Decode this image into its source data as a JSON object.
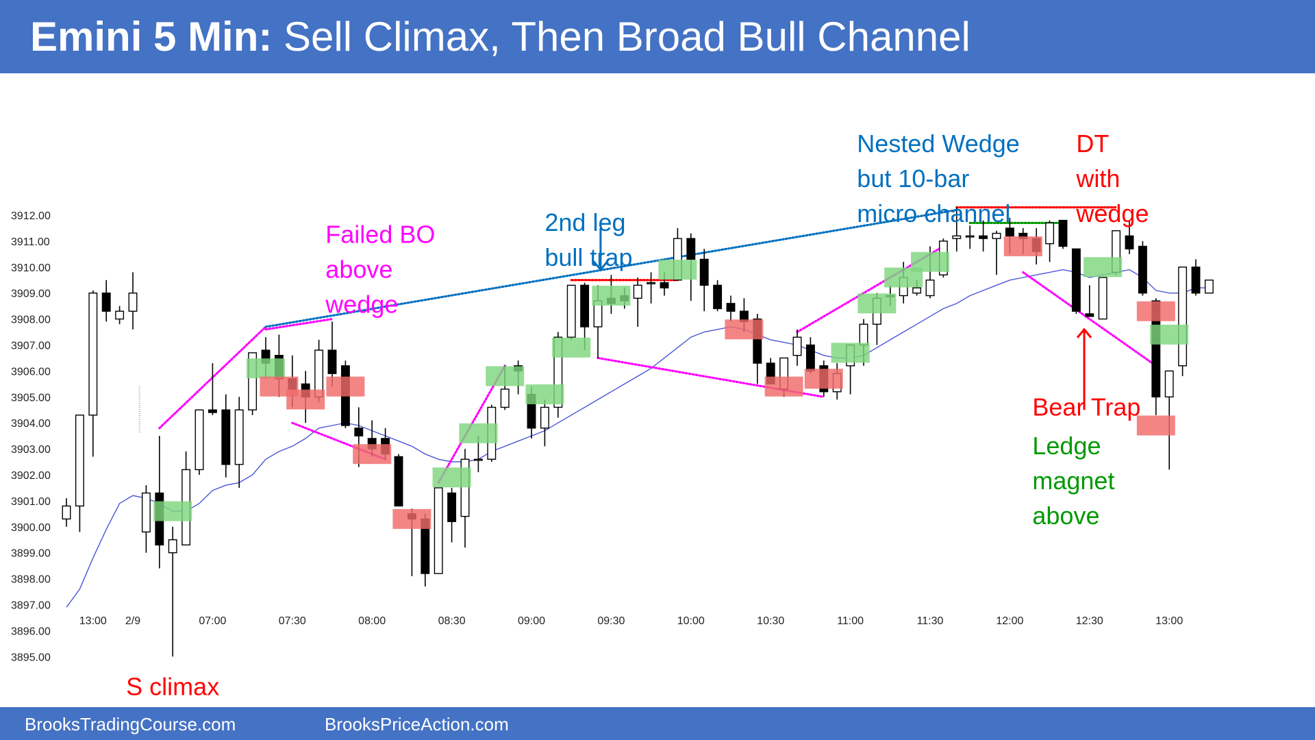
{
  "header": {
    "title_bold": "Emini 5 Min:",
    "title_rest": " Sell Climax, Then Broad Bull Channel"
  },
  "footer": {
    "left": "BrooksTradingCourse.com",
    "right": "BrooksPriceAction.com"
  },
  "colors": {
    "header_bg": "#4472c4",
    "bull_body": "#ffffff",
    "bear_body": "#000000",
    "ema": "#4a55d6",
    "green_box": "#7fd67f",
    "red_box": "#f06a6a",
    "magenta": "#ff00ff",
    "blue_text": "#0070c0",
    "red_text": "#ff0000",
    "green_text": "#009900"
  },
  "chart_data": {
    "type": "candlestick",
    "ylim": [
      3894.5,
      3913.0
    ],
    "y_ticks": [
      "3912.00",
      "3911.00",
      "3910.00",
      "3909.00",
      "3908.00",
      "3907.00",
      "3906.00",
      "3905.00",
      "3904.00",
      "3903.00",
      "3902.00",
      "3901.00",
      "3900.00",
      "3899.00",
      "3898.00",
      "3897.00",
      "3896.00",
      "3895.00"
    ],
    "x_ticks": [
      {
        "i": 2,
        "label": "13:00"
      },
      {
        "i": 5,
        "label": "2/9"
      },
      {
        "i": 11,
        "label": "07:00"
      },
      {
        "i": 17,
        "label": "07:30"
      },
      {
        "i": 23,
        "label": "08:00"
      },
      {
        "i": 29,
        "label": "08:30"
      },
      {
        "i": 35,
        "label": "09:00"
      },
      {
        "i": 41,
        "label": "09:30"
      },
      {
        "i": 47,
        "label": "10:00"
      },
      {
        "i": 53,
        "label": "10:30"
      },
      {
        "i": 59,
        "label": "11:00"
      },
      {
        "i": 65,
        "label": "11:30"
      },
      {
        "i": 71,
        "label": "12:00"
      },
      {
        "i": 77,
        "label": "12:30"
      },
      {
        "i": 83,
        "label": "13:00"
      }
    ],
    "candles": [
      [
        0,
        3900.3,
        3901.1,
        3900.0,
        3900.8
      ],
      [
        1,
        3900.8,
        3904.3,
        3899.8,
        3904.3
      ],
      [
        2,
        3904.3,
        3909.1,
        3902.7,
        3909.0
      ],
      [
        3,
        3909.0,
        3909.5,
        3907.9,
        3908.3
      ],
      [
        4,
        3908.0,
        3908.5,
        3907.8,
        3908.3
      ],
      [
        5,
        3908.3,
        3909.8,
        3907.6,
        3909.0
      ],
      [
        6,
        3899.8,
        3901.6,
        3899.0,
        3901.3
      ],
      [
        7,
        3901.3,
        3903.5,
        3898.4,
        3899.3
      ],
      [
        8,
        3899.0,
        3900.0,
        3895.0,
        3899.5
      ],
      [
        9,
        3899.3,
        3902.9,
        3899.3,
        3902.2
      ],
      [
        10,
        3902.2,
        3904.5,
        3902.0,
        3904.5
      ],
      [
        11,
        3904.5,
        3906.3,
        3904.3,
        3904.4
      ],
      [
        12,
        3904.5,
        3905.1,
        3901.9,
        3902.4
      ],
      [
        13,
        3902.4,
        3905.0,
        3901.5,
        3904.5
      ],
      [
        14,
        3904.5,
        3906.7,
        3904.3,
        3906.7
      ],
      [
        15,
        3906.8,
        3907.3,
        3905.7,
        3906.3
      ],
      [
        16,
        3906.6,
        3907.4,
        3905.0,
        3905.7
      ],
      [
        17,
        3905.7,
        3906.6,
        3904.6,
        3905.3
      ],
      [
        18,
        3905.5,
        3906.0,
        3904.0,
        3905.0
      ],
      [
        19,
        3905.0,
        3907.2,
        3904.8,
        3906.8
      ],
      [
        20,
        3906.8,
        3907.9,
        3905.4,
        3905.9
      ],
      [
        21,
        3906.2,
        3906.4,
        3903.8,
        3903.9
      ],
      [
        22,
        3903.8,
        3904.6,
        3902.3,
        3903.5
      ],
      [
        23,
        3903.4,
        3904.1,
        3902.7,
        3903.0
      ],
      [
        24,
        3903.4,
        3903.8,
        3902.6,
        3902.8
      ],
      [
        25,
        3902.7,
        3902.8,
        3900.8,
        3900.8
      ],
      [
        26,
        3900.5,
        3900.7,
        3898.1,
        3900.3
      ],
      [
        27,
        3900.3,
        3900.5,
        3897.7,
        3898.2
      ],
      [
        28,
        3898.2,
        3901.5,
        3898.2,
        3901.5
      ],
      [
        29,
        3901.3,
        3901.5,
        3899.4,
        3900.2
      ],
      [
        30,
        3900.4,
        3903.0,
        3899.2,
        3902.6
      ],
      [
        31,
        3902.6,
        3903.5,
        3902.1,
        3902.6
      ],
      [
        32,
        3902.6,
        3904.7,
        3902.5,
        3904.6
      ],
      [
        33,
        3904.6,
        3906.2,
        3904.5,
        3905.3
      ],
      [
        34,
        3906.2,
        3906.4,
        3905.1,
        3906.0
      ],
      [
        35,
        3905.1,
        3905.4,
        3903.4,
        3903.8
      ],
      [
        36,
        3903.8,
        3904.9,
        3903.1,
        3904.6
      ],
      [
        37,
        3904.6,
        3907.5,
        3904.2,
        3907.3
      ],
      [
        38,
        3907.3,
        3909.3,
        3907.2,
        3909.3
      ],
      [
        39,
        3909.3,
        3909.4,
        3906.8,
        3907.7
      ],
      [
        40,
        3907.7,
        3909.3,
        3906.5,
        3908.7
      ],
      [
        41,
        3908.8,
        3909.7,
        3908.2,
        3908.6
      ],
      [
        42,
        3908.9,
        3909.2,
        3908.4,
        3908.7
      ],
      [
        43,
        3908.8,
        3909.6,
        3907.7,
        3909.3
      ],
      [
        44,
        3909.4,
        3909.8,
        3908.6,
        3909.4
      ],
      [
        45,
        3909.4,
        3909.8,
        3908.9,
        3909.2
      ],
      [
        46,
        3909.5,
        3911.5,
        3909.5,
        3911.1
      ],
      [
        47,
        3911.1,
        3911.3,
        3908.7,
        3910.3
      ],
      [
        48,
        3910.3,
        3910.7,
        3908.3,
        3909.3
      ],
      [
        49,
        3909.3,
        3909.5,
        3908.3,
        3908.4
      ],
      [
        50,
        3908.6,
        3908.9,
        3907.9,
        3908.3
      ],
      [
        51,
        3908.3,
        3908.8,
        3907.5,
        3907.9
      ],
      [
        52,
        3908.0,
        3908.2,
        3905.5,
        3906.3
      ],
      [
        53,
        3906.3,
        3906.5,
        3905.5,
        3905.5
      ],
      [
        54,
        3905.3,
        3906.5,
        3905.0,
        3906.5
      ],
      [
        55,
        3906.6,
        3907.6,
        3906.2,
        3907.3
      ],
      [
        56,
        3907.0,
        3907.3,
        3905.9,
        3906.0
      ],
      [
        57,
        3906.2,
        3906.4,
        3905.0,
        3905.2
      ],
      [
        58,
        3905.2,
        3906.3,
        3904.9,
        3905.9
      ],
      [
        59,
        3906.2,
        3907.0,
        3905.1,
        3907.0
      ],
      [
        60,
        3907.0,
        3908.0,
        3906.2,
        3907.8
      ],
      [
        61,
        3907.8,
        3909.0,
        3907.0,
        3908.8
      ],
      [
        62,
        3908.9,
        3909.3,
        3908.5,
        3908.9
      ],
      [
        63,
        3908.9,
        3910.2,
        3908.6,
        3909.6
      ],
      [
        64,
        3909.0,
        3909.5,
        3908.9,
        3909.2
      ],
      [
        65,
        3908.9,
        3910.8,
        3908.8,
        3909.5
      ],
      [
        66,
        3909.7,
        3911.1,
        3909.6,
        3911.0
      ],
      [
        67,
        3911.1,
        3912.3,
        3910.6,
        3911.2
      ],
      [
        68,
        3911.2,
        3911.6,
        3910.7,
        3911.2
      ],
      [
        69,
        3911.2,
        3911.8,
        3910.6,
        3911.1
      ],
      [
        70,
        3911.1,
        3911.4,
        3909.7,
        3911.3
      ],
      [
        71,
        3911.5,
        3911.9,
        3910.5,
        3911.2
      ],
      [
        72,
        3911.3,
        3911.5,
        3910.5,
        3911.1
      ],
      [
        73,
        3911.1,
        3911.5,
        3910.1,
        3910.6
      ],
      [
        74,
        3910.9,
        3911.8,
        3910.2,
        3911.7
      ],
      [
        75,
        3911.8,
        3911.8,
        3910.7,
        3910.8
      ],
      [
        76,
        3910.7,
        3910.7,
        3908.2,
        3908.3
      ],
      [
        77,
        3908.2,
        3909.3,
        3908.1,
        3908.1
      ],
      [
        78,
        3908.0,
        3909.6,
        3908.0,
        3909.6
      ],
      [
        79,
        3909.8,
        3911.4,
        3909.7,
        3911.4
      ],
      [
        80,
        3911.2,
        3911.8,
        3910.5,
        3910.7
      ],
      [
        81,
        3910.8,
        3911.0,
        3908.9,
        3909.0
      ],
      [
        82,
        3908.7,
        3908.8,
        3904.3,
        3905.0
      ],
      [
        83,
        3905.0,
        3906.0,
        3902.2,
        3906.0
      ],
      [
        84,
        3906.2,
        3910.0,
        3905.8,
        3910.0
      ],
      [
        85,
        3910.0,
        3910.3,
        3908.9,
        3909.0
      ],
      [
        86,
        3909.0,
        3909.5,
        3909.0,
        3909.5
      ]
    ],
    "ema": [
      [
        0,
        3896.9
      ],
      [
        1,
        3897.6
      ],
      [
        2,
        3898.8
      ],
      [
        3,
        3899.9
      ],
      [
        4,
        3900.9
      ],
      [
        5,
        3901.2
      ],
      [
        6,
        3901.1
      ],
      [
        7,
        3900.9
      ],
      [
        8,
        3900.6
      ],
      [
        9,
        3900.6
      ],
      [
        10,
        3900.9
      ],
      [
        11,
        3901.4
      ],
      [
        12,
        3901.6
      ],
      [
        13,
        3901.7
      ],
      [
        14,
        3902.0
      ],
      [
        15,
        3902.6
      ],
      [
        16,
        3902.9
      ],
      [
        17,
        3903.1
      ],
      [
        18,
        3903.4
      ],
      [
        19,
        3903.8
      ],
      [
        20,
        3903.9
      ],
      [
        21,
        3904.0
      ],
      [
        22,
        3903.9
      ],
      [
        23,
        3903.7
      ],
      [
        24,
        3903.5
      ],
      [
        25,
        3903.3
      ],
      [
        26,
        3903.1
      ],
      [
        27,
        3902.8
      ],
      [
        28,
        3902.6
      ],
      [
        29,
        3902.5
      ],
      [
        30,
        3902.5
      ],
      [
        31,
        3902.6
      ],
      [
        32,
        3902.9
      ],
      [
        33,
        3903.1
      ],
      [
        34,
        3903.3
      ],
      [
        35,
        3903.5
      ],
      [
        36,
        3903.7
      ],
      [
        37,
        3904.0
      ],
      [
        38,
        3904.3
      ],
      [
        39,
        3904.6
      ],
      [
        40,
        3904.9
      ],
      [
        41,
        3905.2
      ],
      [
        42,
        3905.5
      ],
      [
        43,
        3905.8
      ],
      [
        44,
        3906.1
      ],
      [
        45,
        3906.5
      ],
      [
        46,
        3906.9
      ],
      [
        47,
        3907.3
      ],
      [
        48,
        3907.5
      ],
      [
        49,
        3907.6
      ],
      [
        50,
        3907.7
      ],
      [
        51,
        3907.6
      ],
      [
        52,
        3907.4
      ],
      [
        53,
        3907.2
      ],
      [
        54,
        3907.1
      ],
      [
        55,
        3907.0
      ],
      [
        56,
        3906.8
      ],
      [
        57,
        3906.6
      ],
      [
        58,
        3906.5
      ],
      [
        59,
        3906.5
      ],
      [
        60,
        3906.6
      ],
      [
        61,
        3906.9
      ],
      [
        62,
        3907.2
      ],
      [
        63,
        3907.5
      ],
      [
        64,
        3907.8
      ],
      [
        65,
        3908.1
      ],
      [
        66,
        3908.4
      ],
      [
        67,
        3908.6
      ],
      [
        68,
        3908.9
      ],
      [
        69,
        3909.1
      ],
      [
        70,
        3909.3
      ],
      [
        71,
        3909.5
      ],
      [
        72,
        3909.6
      ],
      [
        73,
        3909.7
      ],
      [
        74,
        3909.8
      ],
      [
        75,
        3909.9
      ],
      [
        76,
        3909.8
      ],
      [
        77,
        3909.6
      ],
      [
        78,
        3909.7
      ],
      [
        79,
        3909.8
      ],
      [
        80,
        3909.9
      ],
      [
        81,
        3909.6
      ],
      [
        82,
        3909.1
      ],
      [
        83,
        3909.0
      ],
      [
        84,
        3909.0
      ],
      [
        85,
        3909.2
      ],
      [
        86,
        3909.2
      ]
    ],
    "signal_boxes": [
      {
        "i": 8,
        "price": 3900.6,
        "color": "green"
      },
      {
        "i": 15,
        "price": 3906.1,
        "color": "green"
      },
      {
        "i": 16,
        "price": 3905.4,
        "color": "red"
      },
      {
        "i": 18,
        "price": 3904.9,
        "color": "red"
      },
      {
        "i": 21,
        "price": 3905.4,
        "color": "red"
      },
      {
        "i": 23,
        "price": 3902.8,
        "color": "red"
      },
      {
        "i": 26,
        "price": 3900.3,
        "color": "red"
      },
      {
        "i": 29,
        "price": 3901.9,
        "color": "green"
      },
      {
        "i": 31,
        "price": 3903.6,
        "color": "green"
      },
      {
        "i": 33,
        "price": 3905.8,
        "color": "green"
      },
      {
        "i": 36,
        "price": 3905.1,
        "color": "green"
      },
      {
        "i": 38,
        "price": 3906.9,
        "color": "green"
      },
      {
        "i": 41,
        "price": 3908.9,
        "color": "green"
      },
      {
        "i": 46,
        "price": 3909.9,
        "color": "green"
      },
      {
        "i": 51,
        "price": 3907.6,
        "color": "red"
      },
      {
        "i": 54,
        "price": 3905.4,
        "color": "red"
      },
      {
        "i": 57,
        "price": 3905.7,
        "color": "red"
      },
      {
        "i": 59,
        "price": 3906.7,
        "color": "green"
      },
      {
        "i": 61,
        "price": 3908.6,
        "color": "green"
      },
      {
        "i": 63,
        "price": 3909.6,
        "color": "green"
      },
      {
        "i": 65,
        "price": 3910.2,
        "color": "green"
      },
      {
        "i": 72,
        "price": 3910.8,
        "color": "red"
      },
      {
        "i": 78,
        "price": 3910.0,
        "color": "green"
      },
      {
        "i": 82,
        "price": 3908.3,
        "color": "red"
      },
      {
        "i": 83,
        "price": 3907.4,
        "color": "green"
      },
      {
        "i": 82,
        "price": 3903.9,
        "color": "red"
      }
    ],
    "lines": [
      {
        "from": [
          7,
          3903.8
        ],
        "to": [
          15,
          3907.7
        ],
        "color": "magenta"
      },
      {
        "from": [
          15,
          3907.6
        ],
        "to": [
          20,
          3908.0
        ],
        "color": "magenta"
      },
      {
        "from": [
          17,
          3904.0
        ],
        "to": [
          24,
          3902.6
        ],
        "color": "magenta"
      },
      {
        "from": [
          28,
          3901.7
        ],
        "to": [
          33,
          3906.2
        ],
        "color": "magenta"
      },
      {
        "from": [
          40,
          3906.5
        ],
        "to": [
          57,
          3905.0
        ],
        "color": "magenta"
      },
      {
        "from": [
          55,
          3907.5
        ],
        "to": [
          66,
          3910.8
        ],
        "color": "magenta"
      },
      {
        "from": [
          72,
          3909.8
        ],
        "to": [
          82,
          3906.2
        ],
        "color": "magenta"
      },
      {
        "from": [
          15,
          3907.7
        ],
        "to": [
          67,
          3912.2
        ],
        "color": "blue"
      },
      {
        "from": [
          38,
          3909.5
        ],
        "to": [
          46,
          3909.5
        ],
        "color": "red"
      },
      {
        "from": [
          67,
          3912.3
        ],
        "to": [
          79,
          3912.3
        ],
        "color": "red"
      },
      {
        "from": [
          68,
          3911.7
        ],
        "to": [
          75,
          3911.7
        ],
        "color": "green"
      }
    ],
    "annotations": [
      {
        "lines": [
          "Failed BO",
          "above",
          "wedge"
        ],
        "i": 19.5,
        "price": 3906.5,
        "color": "magenta",
        "anchor": "start"
      },
      {
        "lines": [
          "2nd leg",
          "bull trap"
        ],
        "i": 36.0,
        "price": 3908.3,
        "color": "blue",
        "anchor": "start"
      },
      {
        "lines": [
          "Nested Wedge",
          "but 10-bar",
          "micro channel"
        ],
        "i": 59.5,
        "price": 3910.0,
        "color": "blue",
        "anchor": "start"
      },
      {
        "lines": [
          "DT",
          "with",
          "wedge"
        ],
        "i": 76.0,
        "price": 3910.0,
        "color": "red",
        "anchor": "start"
      },
      {
        "lines": [
          "Bear Trap"
        ],
        "i": 72.7,
        "price": 3904.5,
        "color": "red",
        "anchor": "start"
      },
      {
        "lines": [
          "Ledge",
          "magnet",
          "above"
        ],
        "i": 72.7,
        "price": 3903.0,
        "color": "green",
        "anchor": "start"
      },
      {
        "lines": [
          "S climax"
        ],
        "i": 8.0,
        "price": 3894.2,
        "color": "red",
        "anchor": "middle"
      }
    ],
    "arrows": [
      {
        "i": 40.2,
        "color": "blue",
        "direction": "down"
      },
      {
        "i": 76.6,
        "color": "red",
        "direction": "up"
      }
    ],
    "xlabel": "",
    "ylabel": "",
    "grid": false
  }
}
